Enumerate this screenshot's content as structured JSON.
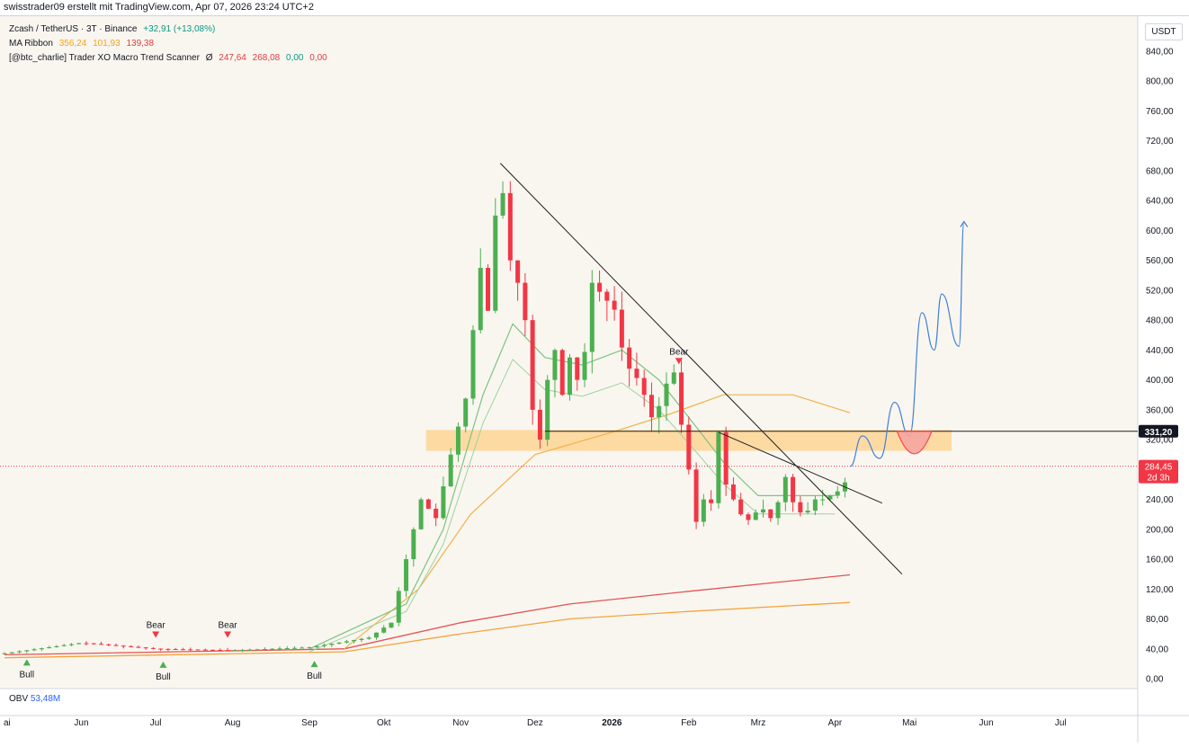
{
  "header": {
    "text": "swisstrader09 erstellt mit TradingView.com, Apr 07, 2026 23:24 UTC+2"
  },
  "legend": {
    "symbol": "Zcash / TetherUS · 3T · Binance",
    "change": "+32,91 (+13,08%)",
    "ribbon_label": "MA Ribbon",
    "ribbon_v1": "356,24",
    "ribbon_v2": "101,93",
    "ribbon_v3": "139,38",
    "scanner_label": "[@btc_charlie] Trader XO Macro Trend Scanner",
    "scanner_phi": "Ø",
    "scanner_v1": "247,64",
    "scanner_v2": "268,08",
    "scanner_v3": "0,00",
    "scanner_v4": "0,00"
  },
  "obv": {
    "label": "OBV",
    "value": "53,48M"
  },
  "currency": "USDT",
  "price_tags": {
    "level": "331,20",
    "current": "284,45",
    "countdown": "2d 3h"
  },
  "signals": [
    {
      "type": "Bull",
      "date": "2025-05-10",
      "price": 38
    },
    {
      "type": "Bear",
      "date": "2025-07-01",
      "price": 44
    },
    {
      "type": "Bull",
      "date": "2025-07-04",
      "price": 35
    },
    {
      "type": "Bear",
      "date": "2025-07-30",
      "price": 44
    },
    {
      "type": "Bull",
      "date": "2025-09-03",
      "price": 36
    },
    {
      "type": "Bear",
      "date": "2026-01-28",
      "price": 410
    }
  ],
  "colors": {
    "up": "#4caf50",
    "down": "#f23645",
    "bg": "#f9f6f0",
    "zone": "#ffd08a",
    "ma_fast": "#7cc47f",
    "ma_mid": "#f0b24a",
    "ma_slow1": "#e55353",
    "ma_slow2": "#f5a33c",
    "projection": "#3f7fd6"
  },
  "chart_data": {
    "type": "candlestick",
    "title": "Zcash / TetherUS · 3T · Binance",
    "y_axis": {
      "ticks": [
        "0,00",
        "40,00",
        "80,00",
        "120,00",
        "160,00",
        "200,00",
        "240,00",
        "280,00",
        "320,00",
        "360,00",
        "400,00",
        "440,00",
        "480,00",
        "520,00",
        "560,00",
        "600,00",
        "640,00",
        "680,00",
        "720,00",
        "760,00",
        "800,00",
        "840,00"
      ],
      "ylim": [
        0,
        860
      ]
    },
    "x_axis": {
      "ticks": [
        {
          "label": "ai",
          "date": "2025-05-01"
        },
        {
          "label": "Jun",
          "date": "2025-06-01"
        },
        {
          "label": "Jul",
          "date": "2025-07-01"
        },
        {
          "label": "Aug",
          "date": "2025-08-01"
        },
        {
          "label": "Sep",
          "date": "2025-09-01"
        },
        {
          "label": "Okt",
          "date": "2025-10-01"
        },
        {
          "label": "Nov",
          "date": "2025-11-01"
        },
        {
          "label": "Dez",
          "date": "2025-12-01"
        },
        {
          "label": "2026",
          "date": "2026-01-01"
        },
        {
          "label": "Feb",
          "date": "2026-02-01"
        },
        {
          "label": "Mrz",
          "date": "2026-03-01"
        },
        {
          "label": "Apr",
          "date": "2026-04-01"
        },
        {
          "label": "Mai",
          "date": "2026-05-01"
        },
        {
          "label": "Jun",
          "date": "2026-06-01"
        },
        {
          "label": "Jul",
          "date": "2026-07-01"
        }
      ],
      "start": "2025-05-01",
      "end": "2026-07-31"
    },
    "candles_keypoints": [
      [
        "2025-05-01",
        34
      ],
      [
        "2025-06-01",
        48
      ],
      [
        "2025-07-01",
        40
      ],
      [
        "2025-08-01",
        38
      ],
      [
        "2025-09-01",
        42
      ],
      [
        "2025-09-25",
        55
      ],
      [
        "2025-10-04",
        75
      ],
      [
        "2025-10-10",
        160
      ],
      [
        "2025-10-16",
        240
      ],
      [
        "2025-10-22",
        215
      ],
      [
        "2025-10-28",
        300
      ],
      [
        "2025-11-01",
        350
      ],
      [
        "2025-11-05",
        400
      ],
      [
        "2025-11-08",
        600
      ],
      [
        "2025-11-11",
        450
      ],
      [
        "2025-11-15",
        620
      ],
      [
        "2025-11-18",
        650
      ],
      [
        "2025-11-21",
        560
      ],
      [
        "2025-11-25",
        520
      ],
      [
        "2025-11-28",
        460
      ],
      [
        "2025-12-01",
        310
      ],
      [
        "2025-12-03",
        320
      ],
      [
        "2025-12-06",
        400
      ],
      [
        "2025-12-09",
        440
      ],
      [
        "2025-12-12",
        380
      ],
      [
        "2025-12-15",
        430
      ],
      [
        "2025-12-18",
        400
      ],
      [
        "2025-12-22",
        450
      ],
      [
        "2025-12-24",
        530
      ],
      [
        "2025-12-29",
        510
      ],
      [
        "2026-01-03",
        490
      ],
      [
        "2026-01-06",
        420
      ],
      [
        "2026-01-10",
        410
      ],
      [
        "2026-01-14",
        380
      ],
      [
        "2026-01-18",
        340
      ],
      [
        "2026-01-22",
        390
      ],
      [
        "2026-01-26",
        410
      ],
      [
        "2026-01-29",
        340
      ],
      [
        "2026-02-02",
        260
      ],
      [
        "2026-02-04",
        210
      ],
      [
        "2026-02-07",
        240
      ],
      [
        "2026-02-10",
        235
      ],
      [
        "2026-02-13",
        330
      ],
      [
        "2026-02-16",
        260
      ],
      [
        "2026-02-19",
        240
      ],
      [
        "2026-02-22",
        220
      ],
      [
        "2026-02-26",
        210
      ],
      [
        "2026-03-02",
        235
      ],
      [
        "2026-03-05",
        210
      ],
      [
        "2026-03-08",
        225
      ],
      [
        "2026-03-12",
        270
      ],
      [
        "2026-03-16",
        225
      ],
      [
        "2026-03-20",
        220
      ],
      [
        "2026-03-24",
        240
      ],
      [
        "2026-03-28",
        240
      ],
      [
        "2026-04-01",
        250
      ],
      [
        "2026-04-04",
        252
      ],
      [
        "2026-04-07",
        284.45
      ]
    ],
    "ma_ribbon": {
      "fast": [
        [
          "2025-09-01",
          40
        ],
        [
          "2025-10-10",
          100
        ],
        [
          "2025-10-25",
          200
        ],
        [
          "2025-11-10",
          380
        ],
        [
          "2025-11-22",
          475
        ],
        [
          "2025-12-05",
          430
        ],
        [
          "2025-12-20",
          420
        ],
        [
          "2026-01-05",
          440
        ],
        [
          "2026-01-20",
          400
        ],
        [
          "2026-02-01",
          350
        ],
        [
          "2026-02-15",
          290
        ],
        [
          "2026-03-01",
          245
        ],
        [
          "2026-04-01",
          245
        ]
      ],
      "mid": [
        [
          "2025-09-15",
          40
        ],
        [
          "2025-10-15",
          120
        ],
        [
          "2025-11-05",
          220
        ],
        [
          "2025-12-01",
          300
        ],
        [
          "2026-01-01",
          330
        ],
        [
          "2026-01-25",
          355
        ],
        [
          "2026-02-15",
          380
        ],
        [
          "2026-03-15",
          380
        ],
        [
          "2026-04-07",
          356
        ]
      ],
      "slow_red": [
        [
          "2025-05-01",
          32
        ],
        [
          "2025-09-15",
          40
        ],
        [
          "2025-11-01",
          75
        ],
        [
          "2025-12-15",
          100
        ],
        [
          "2026-02-01",
          117
        ],
        [
          "2026-04-07",
          139
        ]
      ],
      "slow_orange": [
        [
          "2025-05-01",
          28
        ],
        [
          "2025-09-15",
          36
        ],
        [
          "2025-11-01",
          60
        ],
        [
          "2025-12-15",
          80
        ],
        [
          "2026-02-01",
          90
        ],
        [
          "2026-04-07",
          102
        ]
      ]
    },
    "support_zone": {
      "from": "2025-10-18",
      "to": "2026-05-18",
      "low": 305,
      "high": 333
    },
    "horizontal_level": 331.2,
    "current_price": 284.45,
    "trendlines": [
      {
        "from": [
          "2025-11-17",
          690
        ],
        "to": [
          "2026-04-28",
          140
        ]
      },
      {
        "from": [
          "2026-02-13",
          330
        ],
        "to": [
          "2026-04-20",
          235
        ]
      }
    ],
    "projection_path": [
      [
        "2026-04-07",
        284
      ],
      [
        "2026-04-12",
        325
      ],
      [
        "2026-04-19",
        295
      ],
      [
        "2026-04-25",
        370
      ],
      [
        "2026-05-01",
        325
      ],
      [
        "2026-05-06",
        490
      ],
      [
        "2026-05-11",
        440
      ],
      [
        "2026-05-14",
        515
      ],
      [
        "2026-05-21",
        445
      ],
      [
        "2026-05-23",
        612
      ]
    ]
  }
}
